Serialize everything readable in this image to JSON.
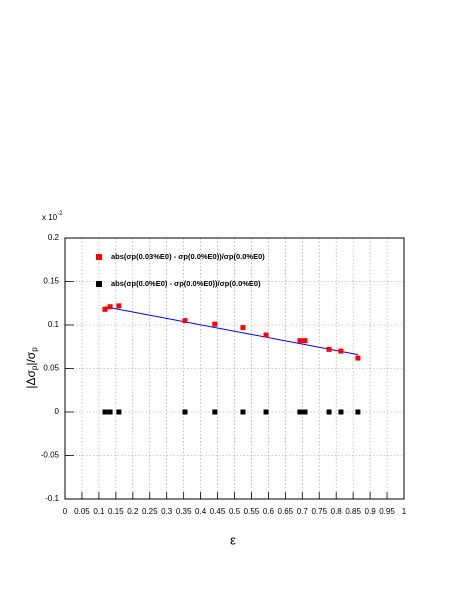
{
  "chart_data": {
    "type": "scatter",
    "xlabel": "ε",
    "ylabel": [
      "|Δσ",
      "p",
      "|/σ",
      "p"
    ],
    "y_multiplier": "x 10",
    "y_multiplier_exponent": "-2",
    "xlim": [
      0,
      1
    ],
    "xticks": [
      0,
      0.05,
      0.1,
      0.15,
      0.2,
      0.25,
      0.3,
      0.35,
      0.4,
      0.45,
      0.5,
      0.55,
      0.6,
      0.65,
      0.7,
      0.75,
      0.8,
      0.85,
      0.9,
      0.95,
      1
    ],
    "ylim": [
      -0.1,
      0.2
    ],
    "yticks": [
      -0.1,
      -0.05,
      0,
      0.05,
      0.1,
      0.15,
      0.2
    ],
    "grid": true,
    "series": [
      {
        "name": "abs(σp(0.03%E0) - σp(0.0%E0))/σp(0.0%E0)",
        "color": "#ff0000",
        "x": [
          0.118,
          0.133,
          0.159,
          0.354,
          0.442,
          0.525,
          0.593,
          0.693,
          0.708,
          0.779,
          0.814,
          0.864
        ],
        "values": [
          0.118,
          0.121,
          0.122,
          0.105,
          0.101,
          0.097,
          0.0885,
          0.082,
          0.082,
          0.072,
          0.07,
          0.062
        ]
      },
      {
        "name": "abs(σp(0.0%E0) - σp(0.0%E0))/σp(0.0%E0)",
        "color": "#000000",
        "x": [
          0.118,
          0.133,
          0.159,
          0.354,
          0.442,
          0.525,
          0.593,
          0.693,
          0.708,
          0.779,
          0.814,
          0.864
        ],
        "values": [
          0,
          0,
          0,
          0,
          0,
          0,
          0,
          0,
          0,
          0,
          0,
          0
        ]
      }
    ],
    "fit": {
      "color": "#0000ff",
      "x": [
        0.118,
        0.864
      ],
      "values": [
        0.121,
        0.066
      ]
    }
  }
}
